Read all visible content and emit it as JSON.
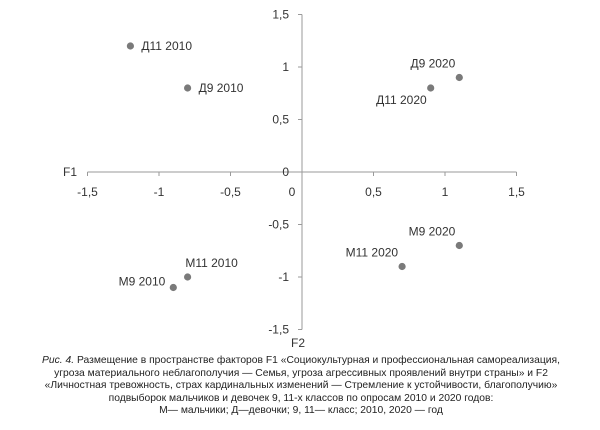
{
  "chart_data": {
    "type": "scatter",
    "xlabel": "F1",
    "ylabel": "F2",
    "xlim": [
      -1.5,
      1.5
    ],
    "ylim": [
      -1.5,
      1.5
    ],
    "x_ticks": [
      -1.5,
      -1,
      -0.5,
      0,
      0.5,
      1,
      1.5
    ],
    "y_ticks": [
      -1.5,
      -1,
      -0.5,
      0,
      0.5,
      1,
      1.5
    ],
    "x_tick_labels": [
      "-1,5",
      "-1",
      "-0,5",
      "0",
      "0,5",
      "1",
      "1,5"
    ],
    "y_tick_labels": [
      "-1,5",
      "-1",
      "-0,5",
      "0",
      "0,5",
      "1",
      "1,5"
    ],
    "grid": false,
    "point_color": "#7a7a7a",
    "points": [
      {
        "label": "Д11 2010",
        "x": -1.2,
        "y": 1.2,
        "label_pos": "right"
      },
      {
        "label": "Д9 2010",
        "x": -0.8,
        "y": 0.8,
        "label_pos": "right"
      },
      {
        "label": "Д9 2020",
        "x": 1.1,
        "y": 0.9,
        "label_pos": "upper-left"
      },
      {
        "label": "Д11 2020",
        "x": 0.9,
        "y": 0.8,
        "label_pos": "lower-left"
      },
      {
        "label": "М9 2020",
        "x": 1.1,
        "y": -0.7,
        "label_pos": "upper-left"
      },
      {
        "label": "М11 2020",
        "x": 0.7,
        "y": -0.9,
        "label_pos": "upper-left"
      },
      {
        "label": "М11 2010",
        "x": -0.8,
        "y": -1.0,
        "label_pos": "above"
      },
      {
        "label": "М9 2010",
        "x": -0.9,
        "y": -1.1,
        "label_pos": "left"
      }
    ]
  },
  "caption": {
    "fig_label": "Рис. 4.",
    "line1": " Размещение в пространстве факторов F1 «Социокультурная и профессиональная самореализация,",
    "line2": "угроза материального неблагополучия — Семья, угроза агрессивных проявлений внутри страны» и F2",
    "line3": "«Личностная тревожность, страх кардинальных изменений — Стремление к устойчивости, благополучию»",
    "line4": "подвыборок мальчиков и девочек 9, 11-х классов по опросам 2010 и 2020 годов:",
    "line5": "М— мальчики; Д—девочки; 9, 11— класс; 2010, 2020 — год"
  }
}
